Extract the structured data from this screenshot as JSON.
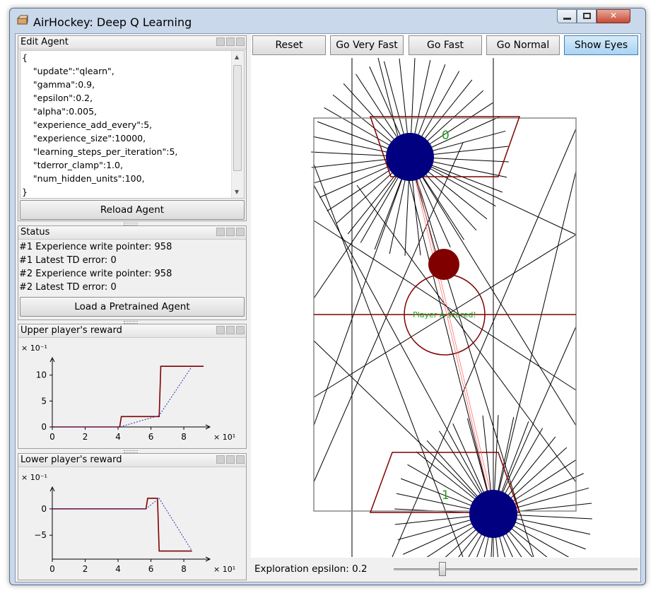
{
  "window": {
    "title": "AirHockey: Deep Q Learning"
  },
  "edit_agent": {
    "title": "Edit Agent",
    "code_lines": [
      "{",
      "    \"update\":\"qlearn\",",
      "    \"gamma\":0.9,",
      "    \"epsilon\":0.2,",
      "    \"alpha\":0.005,",
      "    \"experience_add_every\":5,",
      "    \"experience_size\":10000,",
      "    \"learning_steps_per_iteration\":5,",
      "    \"tderror_clamp\":1.0,",
      "    \"num_hidden_units\":100,",
      "}"
    ],
    "reload_label": "Reload Agent"
  },
  "status": {
    "title": "Status",
    "lines": [
      "#1 Experience write pointer: 958",
      "#1 Latest TD error: 0",
      "#2 Experience write pointer: 958",
      "#2 Latest TD error: 0"
    ],
    "load_label": "Load a Pretrained Agent"
  },
  "toolbar": {
    "reset": "Reset",
    "go_very_fast": "Go Very Fast",
    "go_fast": "Go Fast",
    "go_normal": "Go Normal",
    "show_eyes": "Show Eyes"
  },
  "game": {
    "upper_score": "0",
    "lower_score": "1",
    "message": "Player A scored!",
    "colors": {
      "paddle": "#000080",
      "puck": "#800000",
      "score": "#1aa01a",
      "rink": "#800000"
    }
  },
  "exploration": {
    "label": "Exploration epsilon: 0.2",
    "value": 0.2
  },
  "chart_data": [
    {
      "type": "line",
      "title": "Upper player's reward",
      "y_scale_label": "× 10⁻¹",
      "x_scale_label": "× 10¹",
      "xlim": [
        0,
        9.2
      ],
      "ylim": [
        0,
        12
      ],
      "xticks": [
        0,
        2,
        4,
        6,
        8
      ],
      "yticks": [
        0,
        5,
        10
      ],
      "series": [
        {
          "style": "solid",
          "color": "#800000",
          "x": [
            0,
            4.1,
            4.2,
            6.5,
            6.6,
            9.2
          ],
          "y": [
            0,
            0,
            2,
            2,
            11.7,
            11.7
          ]
        },
        {
          "style": "dotted",
          "color": "#3030c0",
          "x": [
            0,
            4.1,
            6.5,
            8.5
          ],
          "y": [
            0,
            0,
            2.2,
            11.7
          ]
        }
      ]
    },
    {
      "type": "line",
      "title": "Lower player's reward",
      "y_scale_label": "× 10⁻¹",
      "x_scale_label": "× 10¹",
      "xlim": [
        0,
        9.2
      ],
      "ylim": [
        -9,
        2.8
      ],
      "xticks": [
        0,
        2,
        4,
        6,
        8
      ],
      "yticks": [
        0,
        -5
      ],
      "series": [
        {
          "style": "solid",
          "color": "#800000",
          "x": [
            0,
            5.7,
            5.8,
            6.4,
            6.5,
            8.5
          ],
          "y": [
            0,
            0,
            2,
            2,
            -8,
            -8
          ]
        },
        {
          "style": "dotted",
          "color": "#3030c0",
          "x": [
            0,
            5.7,
            6.5,
            8.5
          ],
          "y": [
            0,
            0,
            2,
            -8
          ]
        }
      ]
    }
  ]
}
